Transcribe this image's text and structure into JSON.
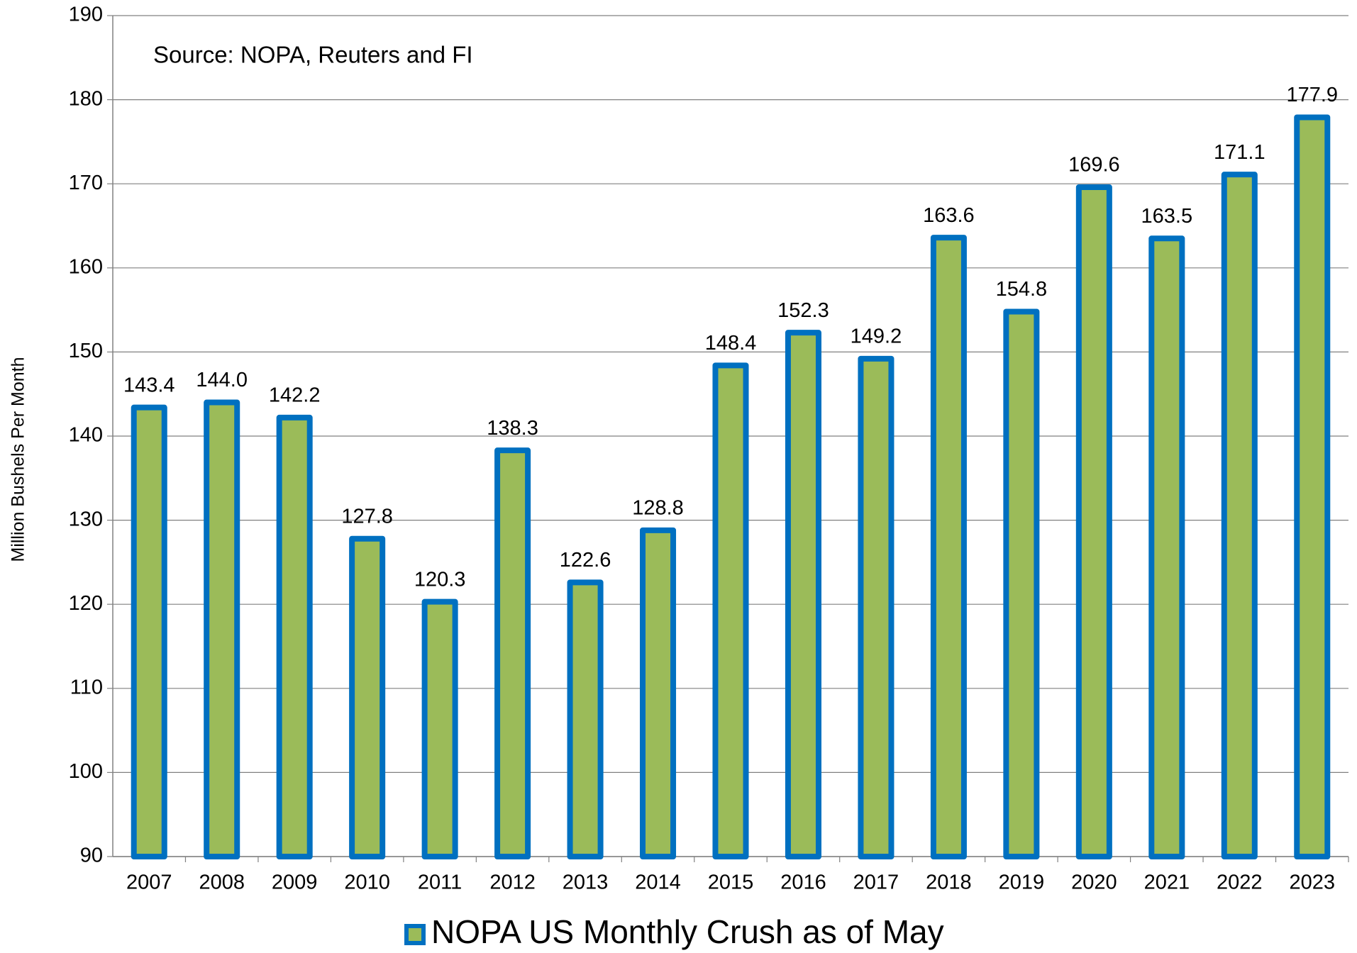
{
  "chart_data": {
    "type": "bar",
    "annotation": "Source: NOPA, Reuters and FI",
    "y_label": "Million Bushels Per Month",
    "categories": [
      "2007",
      "2008",
      "2009",
      "2010",
      "2011",
      "2012",
      "2013",
      "2014",
      "2015",
      "2016",
      "2017",
      "2018",
      "2019",
      "2020",
      "2021",
      "2022",
      "2023"
    ],
    "series": [
      {
        "name": "NOPA US Monthly Crush as of May",
        "color": "#9bbb59",
        "edge_color": "#0070c0",
        "values": [
          143.4,
          144.0,
          142.2,
          127.8,
          120.3,
          138.3,
          122.6,
          128.8,
          148.4,
          152.3,
          149.2,
          163.6,
          154.8,
          169.6,
          163.5,
          171.1,
          177.9
        ],
        "value_labels": [
          "143.4",
          "144.0",
          "142.2",
          "127.8",
          "120.3",
          "138.3",
          "122.6",
          "128.8",
          "148.4",
          "152.3",
          "149.2",
          "163.6",
          "154.8",
          "169.6",
          "163.5",
          "171.1",
          "177.9"
        ]
      }
    ],
    "ylim": [
      90,
      190
    ],
    "yticks": [
      90,
      100,
      110,
      120,
      130,
      140,
      150,
      160,
      170,
      180,
      190
    ],
    "grid": true,
    "legend": "bottom"
  }
}
